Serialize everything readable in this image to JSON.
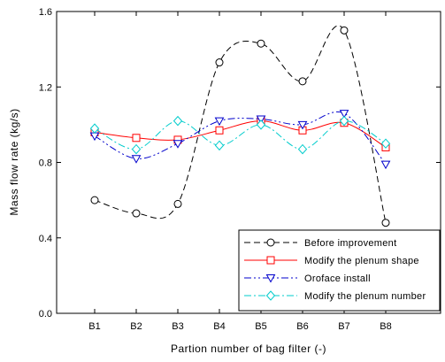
{
  "chart_data": {
    "type": "line",
    "xlabel": "Partion number of bag filter (-)",
    "ylabel": "Mass flow rate (kg/s)",
    "categories": [
      "B1",
      "B2",
      "B3",
      "B4",
      "B5",
      "B6",
      "B7",
      "B8"
    ],
    "ylim": [
      0.0,
      1.6
    ],
    "yticks": [
      "0.0",
      "0.4",
      "0.8",
      "1.2",
      "1.6"
    ],
    "grid": false,
    "legend_position": "bottom-right",
    "series": [
      {
        "name": "Before improvement",
        "values": [
          0.6,
          0.53,
          0.58,
          1.33,
          1.43,
          1.23,
          1.5,
          0.48
        ],
        "color": "#000000",
        "line_style": "dashed",
        "marker": "circle"
      },
      {
        "name": "Modify the plenum shape",
        "values": [
          0.96,
          0.93,
          0.92,
          0.97,
          1.02,
          0.97,
          1.01,
          0.88
        ],
        "color": "#ff0000",
        "line_style": "solid",
        "marker": "square"
      },
      {
        "name": "Oroface install",
        "values": [
          0.94,
          0.82,
          0.9,
          1.02,
          1.03,
          1.0,
          1.06,
          0.79
        ],
        "color": "#0000cc",
        "line_style": "dash-dot-dot",
        "marker": "triangle-down"
      },
      {
        "name": "Modify the plenum number",
        "values": [
          0.98,
          0.87,
          1.02,
          0.89,
          1.0,
          0.87,
          1.02,
          0.9
        ],
        "color": "#00cccc",
        "line_style": "dash-dot",
        "marker": "diamond"
      }
    ]
  }
}
